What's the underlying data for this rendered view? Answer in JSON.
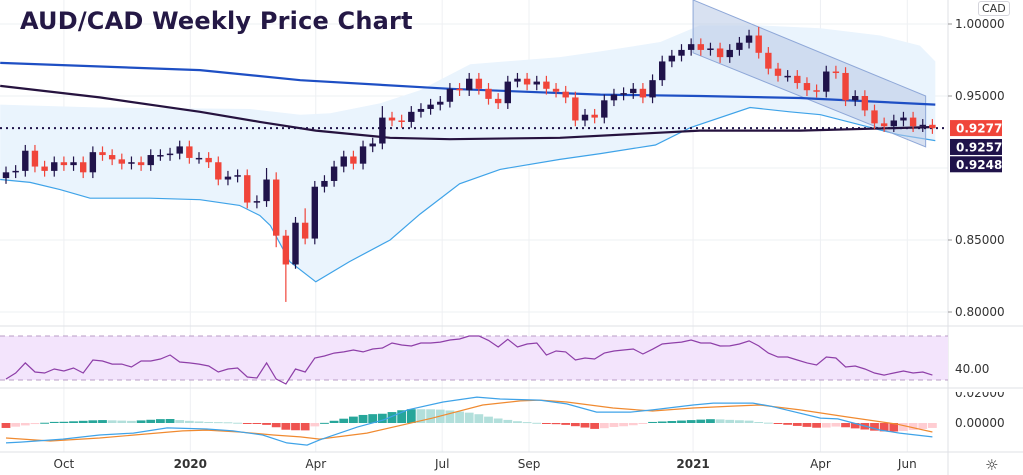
{
  "title": "AUD/CAD Weekly Price Chart",
  "currency_label": "CAD",
  "settings_icon": "gear-icon",
  "colors": {
    "up": "#20134a",
    "down": "#f0453a",
    "ma_blue": "#1e4fc4",
    "ma_dark": "#26133f",
    "bb": "#3fa3e8",
    "bb_fill": "#eaf4fd",
    "channel": "#b8c8e6",
    "rsi": "#8e3fa8",
    "rsi_bg": "#f3e4fc",
    "macd": "#3fa3e8",
    "signal": "#f08a30",
    "hist_up": "#26a69a",
    "hist_up_fade": "#b2dfdb",
    "hist_dn": "#ef5350",
    "hist_dn_fade": "#ffcdd2"
  },
  "chart_data": {
    "type": "candlestick",
    "title": "AUD/CAD Weekly Price Chart",
    "interval": "weekly",
    "price_axis_ticks": [
      "1.00000",
      "0.95000",
      "0.85000",
      "0.80000"
    ],
    "price_axis_values": [
      1.0,
      0.95,
      0.85,
      0.8
    ],
    "price_range": [
      0.78,
      1.016
    ],
    "time_labels": [
      {
        "label": "Oct",
        "index": 6
      },
      {
        "label": "2020",
        "index": 19.1
      },
      {
        "label": "Apr",
        "index": 32.1
      },
      {
        "label": "Jul",
        "index": 45.2
      },
      {
        "label": "Sep",
        "index": 54.2
      },
      {
        "label": "2021",
        "index": 71.2
      },
      {
        "label": "Apr",
        "index": 84.4
      },
      {
        "label": "Jun",
        "index": 93.4
      }
    ],
    "first_open": 0.893,
    "closes": [
      0.897,
      0.898,
      0.912,
      0.901,
      0.898,
      0.904,
      0.902,
      0.904,
      0.897,
      0.911,
      0.909,
      0.906,
      0.903,
      0.904,
      0.902,
      0.909,
      0.909,
      0.91,
      0.915,
      0.907,
      0.907,
      0.904,
      0.892,
      0.894,
      0.895,
      0.876,
      0.877,
      0.892,
      0.853,
      0.833,
      0.862,
      0.851,
      0.887,
      0.891,
      0.901,
      0.908,
      0.903,
      0.915,
      0.917,
      0.935,
      0.933,
      0.932,
      0.939,
      0.941,
      0.944,
      0.946,
      0.955,
      0.954,
      0.962,
      0.955,
      0.948,
      0.945,
      0.96,
      0.962,
      0.958,
      0.96,
      0.955,
      0.953,
      0.949,
      0.933,
      0.937,
      0.935,
      0.947,
      0.951,
      0.952,
      0.955,
      0.949,
      0.961,
      0.974,
      0.978,
      0.982,
      0.986,
      0.982,
      0.983,
      0.977,
      0.982,
      0.987,
      0.992,
      0.98,
      0.969,
      0.964,
      0.964,
      0.959,
      0.954,
      0.953,
      0.967,
      0.966,
      0.947,
      0.95,
      0.94,
      0.931,
      0.929,
      0.933,
      0.935,
      0.929,
      0.93,
      0.9277
    ],
    "wick_overrides": [
      {
        "index": 27,
        "high": 0.9
      },
      {
        "index": 28,
        "high": 0.897,
        "low": 0.845
      },
      {
        "index": 29,
        "low": 0.807
      },
      {
        "index": 30,
        "high": 0.866,
        "low": 0.83
      },
      {
        "index": 31,
        "high": 0.872
      },
      {
        "index": 39,
        "high": 0.943
      },
      {
        "index": 78,
        "high": 0.998
      }
    ],
    "ma_long": [
      [
        -0.6,
        0.973
      ],
      [
        20.1,
        0.968
      ],
      [
        30.5,
        0.961
      ],
      [
        46,
        0.955
      ],
      [
        61.6,
        0.951
      ],
      [
        71.9,
        0.95
      ],
      [
        82.3,
        0.9486
      ],
      [
        96.3,
        0.944
      ]
    ],
    "ma_mid": [
      [
        -0.6,
        0.957
      ],
      [
        9.7,
        0.949
      ],
      [
        20.1,
        0.939
      ],
      [
        26.3,
        0.932
      ],
      [
        32.1,
        0.926
      ],
      [
        39.8,
        0.921
      ],
      [
        46,
        0.92
      ],
      [
        57.4,
        0.921
      ],
      [
        71.9,
        0.926
      ],
      [
        82.3,
        0.926
      ],
      [
        96.3,
        0.9285
      ]
    ],
    "bb_upper": [
      [
        -0.6,
        0.944
      ],
      [
        9.7,
        0.942
      ],
      [
        25.3,
        0.941
      ],
      [
        30.5,
        0.937
      ],
      [
        33.6,
        0.938
      ],
      [
        38.8,
        0.945
      ],
      [
        42.9,
        0.954
      ],
      [
        48.1,
        0.972
      ],
      [
        57.4,
        0.977
      ],
      [
        61.6,
        0.981
      ],
      [
        67.8,
        0.9875
      ],
      [
        71.9,
        0.999
      ],
      [
        78.1,
        0.999
      ],
      [
        84.4,
        0.997
      ],
      [
        90.6,
        0.992
      ],
      [
        94.7,
        0.985
      ],
      [
        96.3,
        0.974
      ]
    ],
    "bb_lower": [
      [
        -0.6,
        0.892
      ],
      [
        2.5,
        0.89
      ],
      [
        5.6,
        0.885
      ],
      [
        8.7,
        0.879
      ],
      [
        14.9,
        0.879
      ],
      [
        20.1,
        0.878
      ],
      [
        24.2,
        0.874
      ],
      [
        26.3,
        0.867
      ],
      [
        27.4,
        0.86
      ],
      [
        29.4,
        0.835
      ],
      [
        32.1,
        0.821
      ],
      [
        35.6,
        0.835
      ],
      [
        39.8,
        0.85
      ],
      [
        42.9,
        0.868
      ],
      [
        47,
        0.889
      ],
      [
        51.2,
        0.899
      ],
      [
        57.4,
        0.906
      ],
      [
        61.6,
        0.91
      ],
      [
        67.3,
        0.916
      ],
      [
        70.9,
        0.928
      ],
      [
        77.1,
        0.942
      ],
      [
        81.2,
        0.939
      ],
      [
        84.4,
        0.937
      ],
      [
        88.5,
        0.93
      ],
      [
        92.6,
        0.923
      ],
      [
        96.3,
        0.919
      ]
    ],
    "channel": {
      "start_index": 71.2,
      "end_index": 95.3,
      "top": [
        1.0167,
        0.95
      ],
      "bottom": [
        0.98,
        0.9147
      ]
    },
    "last_price_line": 0.92773,
    "price_badges": [
      {
        "label": "0.92773",
        "value": 0.92773,
        "color": "#f0453a"
      },
      {
        "label": "0.92571",
        "value": 0.92571,
        "color": "#20134a"
      },
      {
        "label": "0.92480",
        "value": 0.9248,
        "color": "#20134a"
      }
    ],
    "rsi": {
      "levels": [
        70,
        30
      ],
      "axis_label": "40.00",
      "axis_value": 40,
      "values": [
        30.9,
        36.4,
        45.5,
        37.3,
        36.4,
        40,
        38.2,
        40.9,
        36.4,
        48.2,
        47.3,
        44.5,
        44.5,
        41.8,
        47.3,
        47.3,
        49.1,
        52.7,
        46.4,
        45.5,
        44.5,
        42.7,
        37.3,
        40,
        40.9,
        32.7,
        31.8,
        45.5,
        30.9,
        26.4,
        40,
        37.3,
        50,
        51.8,
        54.5,
        55.5,
        57.3,
        55.5,
        58.2,
        59.1,
        63.6,
        61.8,
        60.9,
        63.6,
        63.6,
        64.5,
        66.4,
        67.3,
        70,
        70,
        66,
        60,
        67,
        60,
        62.7,
        63.6,
        52.7,
        56.4,
        55.5,
        48.2,
        50,
        49.1,
        54.5,
        56.4,
        57.3,
        58.2,
        53.6,
        58,
        62.7,
        63.6,
        64.5,
        66.4,
        63.6,
        63.6,
        60.9,
        61,
        62.7,
        65.5,
        61,
        54.5,
        50.9,
        50.9,
        48.2,
        45.5,
        43.6,
        50.9,
        50,
        41.8,
        42.7,
        40,
        36.4,
        34.5,
        36.4,
        38.2,
        36.4,
        37.3,
        34.5
      ]
    },
    "macd": {
      "axis_labels": [
        "0.02000",
        "0.00000"
      ],
      "axis_values": [
        0.02,
        0
      ],
      "macd_line": [
        [
          0,
          -0.0133
        ],
        [
          1.5,
          -0.0127
        ],
        [
          5.9,
          -0.0107
        ],
        [
          9.7,
          -0.008
        ],
        [
          13.2,
          -0.0067
        ],
        [
          16.7,
          -0.0033
        ],
        [
          20.8,
          -0.004
        ],
        [
          23.5,
          -0.0053
        ],
        [
          26.6,
          -0.008
        ],
        [
          29.1,
          -0.0133
        ],
        [
          31.2,
          -0.0147
        ],
        [
          32.5,
          -0.0113
        ],
        [
          36.4,
          -0.0027
        ],
        [
          39.1,
          0.002
        ],
        [
          41.6,
          0.0087
        ],
        [
          45.3,
          0.014
        ],
        [
          48.8,
          0.0173
        ],
        [
          51.2,
          0.016
        ],
        [
          55.3,
          0.0153
        ],
        [
          58.1,
          0.0127
        ],
        [
          61.2,
          0.0073
        ],
        [
          64.7,
          0.0073
        ],
        [
          67,
          0.0087
        ],
        [
          71.2,
          0.012
        ],
        [
          73.3,
          0.0133
        ],
        [
          77.4,
          0.0133
        ],
        [
          79.2,
          0.0113
        ],
        [
          84.4,
          0.0033
        ],
        [
          86.2,
          0.0027
        ],
        [
          90.6,
          -0.0047
        ],
        [
          92.6,
          -0.0067
        ],
        [
          96,
          -0.0093
        ]
      ],
      "signal_line": [
        [
          0,
          -0.01
        ],
        [
          4.6,
          -0.012
        ],
        [
          9.7,
          -0.01
        ],
        [
          18.3,
          -0.0053
        ],
        [
          20.8,
          -0.0047
        ],
        [
          24.2,
          -0.006
        ],
        [
          27.7,
          -0.008
        ],
        [
          30.5,
          -0.0093
        ],
        [
          32.5,
          -0.0107
        ],
        [
          37.4,
          -0.0067
        ],
        [
          44.2,
          0.0033
        ],
        [
          49.4,
          0.012
        ],
        [
          53.3,
          0.0147
        ],
        [
          55.3,
          0.0153
        ],
        [
          58.1,
          0.014
        ],
        [
          62.9,
          0.01
        ],
        [
          67,
          0.008
        ],
        [
          71.2,
          0.01
        ],
        [
          75.3,
          0.0113
        ],
        [
          78.1,
          0.012
        ],
        [
          82.3,
          0.0087
        ],
        [
          87.2,
          0.004
        ],
        [
          92.3,
          -0.0007
        ],
        [
          96,
          -0.006
        ]
      ]
    }
  }
}
